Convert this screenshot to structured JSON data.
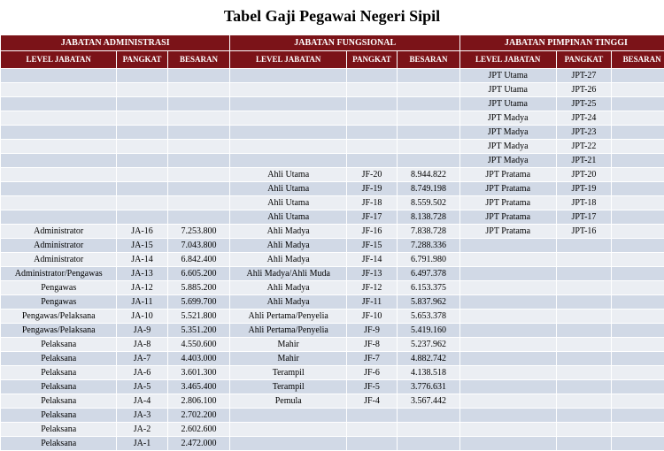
{
  "title": "Tabel Gaji Pegawai Negeri Sipil",
  "colors": {
    "header_bg": "#7b1318",
    "header_fg": "#ffffff",
    "row_odd": "#d1d9e6",
    "row_even": "#ebeef3",
    "border": "#ffffff"
  },
  "groups": [
    {
      "label": "JABATAN ADMINISTRASI",
      "span": 3
    },
    {
      "label": "JABATAN FUNGSIONAL",
      "span": 3
    },
    {
      "label": "JABATAN PIMPINAN TINGGI",
      "span": 3
    }
  ],
  "columns": [
    "LEVEL JABATAN",
    "PANGKAT",
    "BESARAN",
    "LEVEL JABATAN",
    "PANGKAT",
    "BESARAN",
    "LEVEL JABATAN",
    "PANGKAT",
    "BESARAN"
  ],
  "rows": [
    [
      "",
      "",
      "",
      "",
      "",
      "",
      "JPT Utama",
      "JPT-27",
      ""
    ],
    [
      "",
      "",
      "",
      "",
      "",
      "",
      "JPT Utama",
      "JPT-26",
      ""
    ],
    [
      "",
      "",
      "",
      "",
      "",
      "",
      "JPT Utama",
      "JPT-25",
      ""
    ],
    [
      "",
      "",
      "",
      "",
      "",
      "",
      "JPT Madya",
      "JPT-24",
      ""
    ],
    [
      "",
      "",
      "",
      "",
      "",
      "",
      "JPT Madya",
      "JPT-23",
      ""
    ],
    [
      "",
      "",
      "",
      "",
      "",
      "",
      "JPT Madya",
      "JPT-22",
      ""
    ],
    [
      "",
      "",
      "",
      "",
      "",
      "",
      "JPT Madya",
      "JPT-21",
      ""
    ],
    [
      "",
      "",
      "",
      "Ahli Utama",
      "JF-20",
      "8.944.822",
      "JPT Pratama",
      "JPT-20",
      ""
    ],
    [
      "",
      "",
      "",
      "Ahli Utama",
      "JF-19",
      "8.749.198",
      "JPT Pratama",
      "JPT-19",
      ""
    ],
    [
      "",
      "",
      "",
      "Ahli Utama",
      "JF-18",
      "8.559.502",
      "JPT Pratama",
      "JPT-18",
      ""
    ],
    [
      "",
      "",
      "",
      "Ahli Utama",
      "JF-17",
      "8.138.728",
      "JPT Pratama",
      "JPT-17",
      ""
    ],
    [
      "Administrator",
      "JA-16",
      "7.253.800",
      "Ahli Madya",
      "JF-16",
      "7.838.728",
      "JPT Pratama",
      "JPT-16",
      ""
    ],
    [
      "Administrator",
      "JA-15",
      "7.043.800",
      "Ahli Madya",
      "JF-15",
      "7.288.336",
      "",
      "",
      ""
    ],
    [
      "Administrator",
      "JA-14",
      "6.842.400",
      "Ahli Madya",
      "JF-14",
      "6.791.980",
      "",
      "",
      ""
    ],
    [
      "Administrator/Pengawas",
      "JA-13",
      "6.605.200",
      "Ahli Madya/Ahli Muda",
      "JF-13",
      "6.497.378",
      "",
      "",
      ""
    ],
    [
      "Pengawas",
      "JA-12",
      "5.885.200",
      "Ahli Madya",
      "JF-12",
      "6.153.375",
      "",
      "",
      ""
    ],
    [
      "Pengawas",
      "JA-11",
      "5.699.700",
      "Ahli Madya",
      "JF-11",
      "5.837.962",
      "",
      "",
      ""
    ],
    [
      "Pengawas/Pelaksana",
      "JA-10",
      "5.521.800",
      "Ahli Pertama/Penyelia",
      "JF-10",
      "5.653.378",
      "",
      "",
      ""
    ],
    [
      "Pengawas/Pelaksana",
      "JA-9",
      "5.351.200",
      "Ahli Pertama/Penyelia",
      "JF-9",
      "5.419.160",
      "",
      "",
      ""
    ],
    [
      "Pelaksana",
      "JA-8",
      "4.550.600",
      "Mahir",
      "JF-8",
      "5.237.962",
      "",
      "",
      ""
    ],
    [
      "Pelaksana",
      "JA-7",
      "4.403.000",
      "Mahir",
      "JF-7",
      "4.882.742",
      "",
      "",
      ""
    ],
    [
      "Pelaksana",
      "JA-6",
      "3.601.300",
      "Terampil",
      "JF-6",
      "4.138.518",
      "",
      "",
      ""
    ],
    [
      "Pelaksana",
      "JA-5",
      "3.465.400",
      "Terampil",
      "JF-5",
      "3.776.631",
      "",
      "",
      ""
    ],
    [
      "Pelaksana",
      "JA-4",
      "2.806.100",
      "Pemula",
      "JF-4",
      "3.567.442",
      "",
      "",
      ""
    ],
    [
      "Pelaksana",
      "JA-3",
      "2.702.200",
      "",
      "",
      "",
      "",
      "",
      ""
    ],
    [
      "Pelaksana",
      "JA-2",
      "2.602.600",
      "",
      "",
      "",
      "",
      "",
      ""
    ],
    [
      "Pelaksana",
      "JA-1",
      "2.472.000",
      "",
      "",
      "",
      "",
      "",
      ""
    ]
  ]
}
